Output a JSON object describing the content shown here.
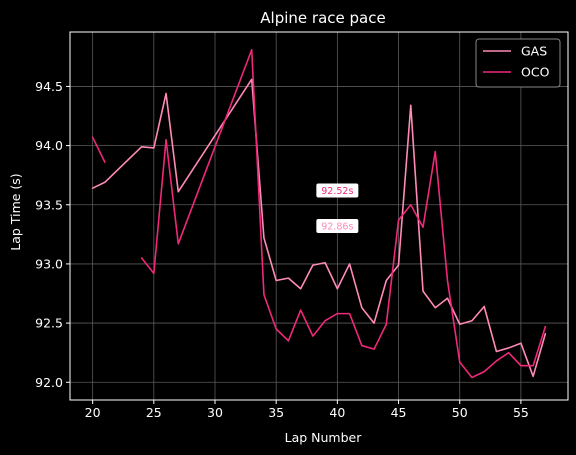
{
  "chart_data": {
    "type": "line",
    "title": "Alpine race pace",
    "xlabel": "Lap Number",
    "ylabel": "Lap Time (s)",
    "xlim": [
      18.15,
      58.85
    ],
    "ylim": [
      91.85,
      94.96
    ],
    "xticks": [
      20,
      25,
      30,
      35,
      40,
      45,
      50,
      55
    ],
    "yticks": [
      92.0,
      92.5,
      93.0,
      93.5,
      94.0,
      94.5
    ],
    "grid": true,
    "legend_position": "top-right",
    "series": [
      {
        "name": "GAS",
        "color": "#ff8ab8",
        "points": [
          [
            20,
            93.64
          ],
          [
            21,
            93.69
          ],
          [
            24,
            93.99
          ],
          [
            25,
            93.98
          ],
          [
            26,
            94.44
          ],
          [
            27,
            93.61
          ],
          [
            33,
            94.56
          ],
          [
            34,
            93.22
          ],
          [
            35,
            92.86
          ],
          [
            36,
            92.88
          ],
          [
            37,
            92.79
          ],
          [
            38,
            92.99
          ],
          [
            39,
            93.01
          ],
          [
            40,
            92.79
          ],
          [
            41,
            93.0
          ],
          [
            42,
            92.63
          ],
          [
            43,
            92.5
          ],
          [
            44,
            92.86
          ],
          [
            45,
            92.99
          ],
          [
            46,
            94.34
          ],
          [
            47,
            92.77
          ],
          [
            48,
            92.63
          ],
          [
            49,
            92.71
          ],
          [
            50,
            92.49
          ],
          [
            51,
            92.52
          ],
          [
            52,
            92.64
          ],
          [
            53,
            92.26
          ],
          [
            54,
            92.29
          ],
          [
            55,
            92.33
          ],
          [
            56,
            92.05
          ],
          [
            57,
            92.41
          ]
        ]
      },
      {
        "name": "OCO",
        "color": "#f0287a",
        "points": [
          [
            20,
            94.07
          ],
          [
            21,
            93.86
          ],
          [
            null,
            null
          ],
          [
            24,
            93.05
          ],
          [
            25,
            92.92
          ],
          [
            26,
            94.05
          ],
          [
            27,
            93.17
          ],
          [
            33,
            94.81
          ],
          [
            34,
            92.74
          ],
          [
            35,
            92.45
          ],
          [
            36,
            92.35
          ],
          [
            37,
            92.61
          ],
          [
            38,
            92.39
          ],
          [
            39,
            92.52
          ],
          [
            40,
            92.58
          ],
          [
            41,
            92.58
          ],
          [
            42,
            92.31
          ],
          [
            43,
            92.28
          ],
          [
            44,
            92.49
          ],
          [
            45,
            93.37
          ],
          [
            46,
            93.5
          ],
          [
            47,
            93.31
          ],
          [
            48,
            93.95
          ],
          [
            49,
            92.86
          ],
          [
            50,
            92.17
          ],
          [
            51,
            92.04
          ],
          [
            52,
            92.09
          ],
          [
            53,
            92.18
          ],
          [
            54,
            92.25
          ],
          [
            55,
            92.14
          ],
          [
            56,
            92.14
          ],
          [
            57,
            92.47
          ]
        ]
      }
    ],
    "annotations": [
      {
        "text": "92.52s",
        "x": 40,
        "y": 93.62,
        "color": "#f0287a"
      },
      {
        "text": "92.86s",
        "x": 40,
        "y": 93.32,
        "color": "#ff8ab8"
      }
    ]
  }
}
